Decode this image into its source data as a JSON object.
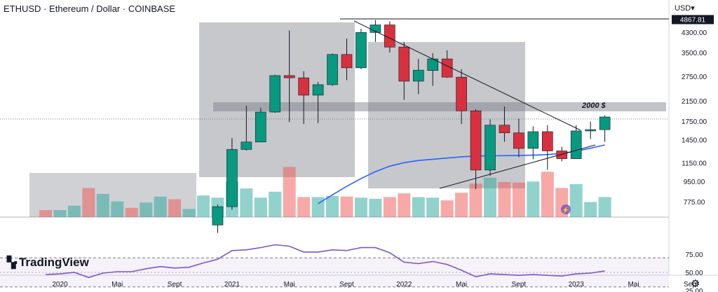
{
  "header": {
    "symbol": "ETHUSD",
    "separator": "·",
    "name": "Ethereum",
    "quote": "Dollar",
    "exchange": "COINBASE",
    "currency_menu": "USD"
  },
  "branding": {
    "logo_text": "TradingView"
  },
  "chart_data": [
    {
      "type": "candlestick",
      "title": "ETHUSD · Ethereum / Dollar · COINBASE",
      "scale": "log",
      "ylim": [
        680,
        5300
      ],
      "y_ticks": [
        "4300.00",
        "3500.00",
        "2750.00",
        "2150.00",
        "1750.00",
        "1450.00",
        "1150.00",
        "950.00",
        "775.00"
      ],
      "x_ticks": [
        "2020",
        "Mai",
        "Sept",
        "2021",
        "Mai",
        "Sept",
        "2022",
        "Mai",
        "Sept",
        "2023",
        "Mai",
        "Sept"
      ],
      "last_price_label": "4867.81",
      "annotation": "2000 $",
      "colors": {
        "up": "#26a69a",
        "down": "#ef5350",
        "ma": "#2962ff",
        "rsi": "#7e57c2"
      },
      "candles": [
        {
          "month": "2020-12",
          "o": 612,
          "h": 752,
          "l": 565,
          "c": 737
        },
        {
          "month": "2021-01",
          "o": 737,
          "h": 1476,
          "l": 715,
          "c": 1314
        },
        {
          "month": "2021-02",
          "o": 1314,
          "h": 2042,
          "l": 1300,
          "c": 1417
        },
        {
          "month": "2021-03",
          "o": 1417,
          "h": 2000,
          "l": 1440,
          "c": 1918
        },
        {
          "month": "2021-04",
          "o": 1918,
          "h": 2800,
          "l": 1900,
          "c": 2773
        },
        {
          "month": "2021-05",
          "o": 2773,
          "h": 4380,
          "l": 1733,
          "c": 2712
        },
        {
          "month": "2021-06",
          "o": 2712,
          "h": 2900,
          "l": 1700,
          "c": 2275
        },
        {
          "month": "2021-07",
          "o": 2275,
          "h": 2600,
          "l": 1716,
          "c": 2530
        },
        {
          "month": "2021-08",
          "o": 2530,
          "h": 3470,
          "l": 2500,
          "c": 3433
        },
        {
          "month": "2021-09",
          "o": 3433,
          "h": 4027,
          "l": 2650,
          "c": 3000
        },
        {
          "month": "2021-10",
          "o": 3000,
          "h": 4460,
          "l": 2960,
          "c": 4288
        },
        {
          "month": "2021-11",
          "o": 4288,
          "h": 4867,
          "l": 3900,
          "c": 4631
        },
        {
          "month": "2021-12",
          "o": 4631,
          "h": 4800,
          "l": 3500,
          "c": 3700
        },
        {
          "month": "2022-01",
          "o": 3700,
          "h": 3900,
          "l": 2170,
          "c": 2620
        },
        {
          "month": "2022-02",
          "o": 2620,
          "h": 3280,
          "l": 2300,
          "c": 2930
        },
        {
          "month": "2022-03",
          "o": 2920,
          "h": 3480,
          "l": 2500,
          "c": 3283
        },
        {
          "month": "2022-04",
          "o": 3283,
          "h": 3580,
          "l": 2710,
          "c": 2730
        },
        {
          "month": "2022-05",
          "o": 2730,
          "h": 2960,
          "l": 1700,
          "c": 1942
        },
        {
          "month": "2022-06",
          "o": 1942,
          "h": 1974,
          "l": 880,
          "c": 1067
        },
        {
          "month": "2022-07",
          "o": 1067,
          "h": 1780,
          "l": 1005,
          "c": 1680
        },
        {
          "month": "2022-08",
          "o": 1680,
          "h": 2030,
          "l": 1420,
          "c": 1554
        },
        {
          "month": "2022-09",
          "o": 1554,
          "h": 1790,
          "l": 1215,
          "c": 1328
        },
        {
          "month": "2022-10",
          "o": 1328,
          "h": 1660,
          "l": 1190,
          "c": 1573
        },
        {
          "month": "2022-11",
          "o": 1573,
          "h": 1680,
          "l": 1070,
          "c": 1295
        },
        {
          "month": "2022-12",
          "o": 1295,
          "h": 1350,
          "l": 1165,
          "c": 1197
        },
        {
          "month": "2023-01",
          "o": 1197,
          "h": 1680,
          "l": 1195,
          "c": 1585
        },
        {
          "month": "2023-02",
          "o": 1585,
          "h": 1740,
          "l": 1460,
          "c": 1605
        },
        {
          "month": "2023-03",
          "o": 1605,
          "h": 1855,
          "l": 1420,
          "c": 1825
        }
      ],
      "moving_average": [
        {
          "month": "2021-07",
          "v": 760
        },
        {
          "month": "2021-08",
          "v": 830
        },
        {
          "month": "2021-09",
          "v": 905
        },
        {
          "month": "2021-10",
          "v": 980
        },
        {
          "month": "2021-11",
          "v": 1050
        },
        {
          "month": "2021-12",
          "v": 1110
        },
        {
          "month": "2022-01",
          "v": 1150
        },
        {
          "month": "2022-02",
          "v": 1175
        },
        {
          "month": "2022-03",
          "v": 1190
        },
        {
          "month": "2022-04",
          "v": 1205
        },
        {
          "month": "2022-05",
          "v": 1220
        },
        {
          "month": "2022-06",
          "v": 1230
        },
        {
          "month": "2022-07",
          "v": 1232
        },
        {
          "month": "2022-08",
          "v": 1234
        },
        {
          "month": "2022-09",
          "v": 1236
        },
        {
          "month": "2022-10",
          "v": 1240
        },
        {
          "month": "2022-11",
          "v": 1248
        },
        {
          "month": "2022-12",
          "v": 1262
        },
        {
          "month": "2023-01",
          "v": 1290
        },
        {
          "month": "2023-02",
          "v": 1330
        },
        {
          "month": "2023-03",
          "v": 1375
        }
      ],
      "volume": [
        {
          "month": "2019-12",
          "v": 0.13,
          "up": false
        },
        {
          "month": "2020-01",
          "v": 0.13,
          "up": true
        },
        {
          "month": "2020-02",
          "v": 0.21,
          "up": true
        },
        {
          "month": "2020-03",
          "v": 0.54,
          "up": false
        },
        {
          "month": "2020-04",
          "v": 0.43,
          "up": true
        },
        {
          "month": "2020-05",
          "v": 0.29,
          "up": true
        },
        {
          "month": "2020-06",
          "v": 0.17,
          "up": false
        },
        {
          "month": "2020-07",
          "v": 0.27,
          "up": true
        },
        {
          "month": "2020-08",
          "v": 0.38,
          "up": true
        },
        {
          "month": "2020-09",
          "v": 0.33,
          "up": false
        },
        {
          "month": "2020-10",
          "v": 0.15,
          "up": true
        },
        {
          "month": "2020-11",
          "v": 0.4,
          "up": true
        },
        {
          "month": "2020-12",
          "v": 0.36,
          "up": true
        },
        {
          "month": "2021-01",
          "v": 0.66,
          "up": true
        },
        {
          "month": "2021-02",
          "v": 0.53,
          "up": true
        },
        {
          "month": "2021-03",
          "v": 0.36,
          "up": true
        },
        {
          "month": "2021-04",
          "v": 0.47,
          "up": true
        },
        {
          "month": "2021-05",
          "v": 0.93,
          "up": false
        },
        {
          "month": "2021-06",
          "v": 0.37,
          "up": false
        },
        {
          "month": "2021-07",
          "v": 0.37,
          "up": true
        },
        {
          "month": "2021-08",
          "v": 0.39,
          "up": true
        },
        {
          "month": "2021-09",
          "v": 0.38,
          "up": false
        },
        {
          "month": "2021-10",
          "v": 0.36,
          "up": true
        },
        {
          "month": "2021-11",
          "v": 0.34,
          "up": true
        },
        {
          "month": "2021-12",
          "v": 0.37,
          "up": false
        },
        {
          "month": "2022-01",
          "v": 0.44,
          "up": false
        },
        {
          "month": "2022-02",
          "v": 0.37,
          "up": true
        },
        {
          "month": "2022-03",
          "v": 0.36,
          "up": true
        },
        {
          "month": "2022-04",
          "v": 0.31,
          "up": false
        },
        {
          "month": "2022-05",
          "v": 0.45,
          "up": false
        },
        {
          "month": "2022-06",
          "v": 0.62,
          "up": false
        },
        {
          "month": "2022-07",
          "v": 0.73,
          "up": true
        },
        {
          "month": "2022-08",
          "v": 0.65,
          "up": false
        },
        {
          "month": "2022-09",
          "v": 0.64,
          "up": false
        },
        {
          "month": "2022-10",
          "v": 0.66,
          "up": true
        },
        {
          "month": "2022-11",
          "v": 0.84,
          "up": false
        },
        {
          "month": "2022-12",
          "v": 0.54,
          "up": false
        },
        {
          "month": "2023-01",
          "v": 0.61,
          "up": true
        },
        {
          "month": "2023-02",
          "v": 0.28,
          "up": true
        },
        {
          "month": "2023-03",
          "v": 0.37,
          "up": true
        }
      ]
    },
    {
      "type": "line",
      "title": "",
      "ylim": [
        25,
        100
      ],
      "y_ticks": [
        "75.00",
        "50.00",
        "25.00"
      ],
      "bands": [
        70,
        30
      ],
      "series": [
        {
          "points": [
            {
              "month": "2019-12",
              "v": 47
            },
            {
              "month": "2020-01",
              "v": 48
            },
            {
              "month": "2020-02",
              "v": 50
            },
            {
              "month": "2020-03",
              "v": 43
            },
            {
              "month": "2020-04",
              "v": 49
            },
            {
              "month": "2020-05",
              "v": 51
            },
            {
              "month": "2020-06",
              "v": 51
            },
            {
              "month": "2020-07",
              "v": 55
            },
            {
              "month": "2020-08",
              "v": 58
            },
            {
              "month": "2020-09",
              "v": 56
            },
            {
              "month": "2020-10",
              "v": 57
            },
            {
              "month": "2020-11",
              "v": 63
            },
            {
              "month": "2020-12",
              "v": 68
            },
            {
              "month": "2021-01",
              "v": 80
            },
            {
              "month": "2021-02",
              "v": 81
            },
            {
              "month": "2021-03",
              "v": 84
            },
            {
              "month": "2021-04",
              "v": 88
            },
            {
              "month": "2021-05",
              "v": 86
            },
            {
              "month": "2021-06",
              "v": 78
            },
            {
              "month": "2021-07",
              "v": 78
            },
            {
              "month": "2021-08",
              "v": 81
            },
            {
              "month": "2021-09",
              "v": 80
            },
            {
              "month": "2021-10",
              "v": 84
            },
            {
              "month": "2021-11",
              "v": 84
            },
            {
              "month": "2021-12",
              "v": 77
            },
            {
              "month": "2022-01",
              "v": 64
            },
            {
              "month": "2022-02",
              "v": 62
            },
            {
              "month": "2022-03",
              "v": 65
            },
            {
              "month": "2022-04",
              "v": 61
            },
            {
              "month": "2022-05",
              "v": 53
            },
            {
              "month": "2022-06",
              "v": 44
            },
            {
              "month": "2022-07",
              "v": 48
            },
            {
              "month": "2022-08",
              "v": 47
            },
            {
              "month": "2022-09",
              "v": 46
            },
            {
              "month": "2022-10",
              "v": 47
            },
            {
              "month": "2022-11",
              "v": 46
            },
            {
              "month": "2022-12",
              "v": 45
            },
            {
              "month": "2023-01",
              "v": 48
            },
            {
              "month": "2023-02",
              "v": 49
            },
            {
              "month": "2023-03",
              "v": 52
            }
          ]
        }
      ]
    }
  ]
}
